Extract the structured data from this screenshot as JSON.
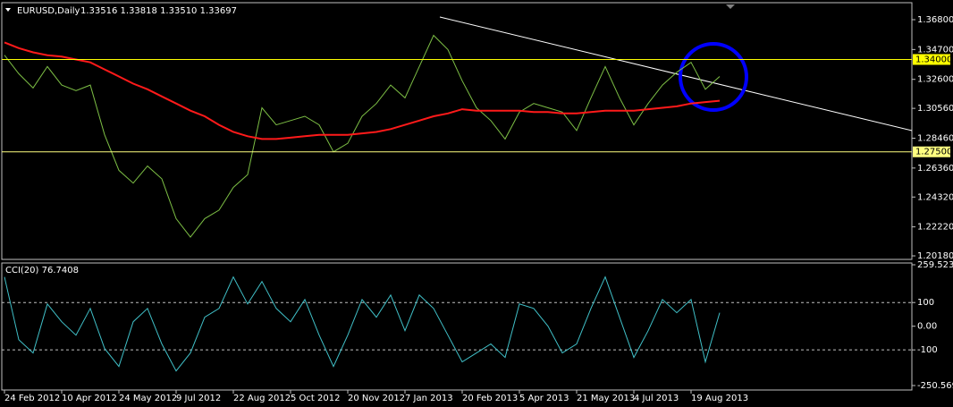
{
  "chart_data": [
    {
      "type": "line",
      "title": "EURUSD,Daily",
      "subtitle": "1.33516 1.33818 1.33510 1.33697",
      "categories": [
        "24 Feb 2012",
        null,
        null,
        null,
        "10 Apr 2012",
        null,
        null,
        null,
        "24 May 2012",
        null,
        null,
        null,
        "9 Jul 2012",
        null,
        null,
        null,
        "22 Aug 2012",
        null,
        null,
        null,
        "5 Oct 2012",
        null,
        null,
        null,
        "20 Nov 2012",
        null,
        null,
        null,
        "7 Jan 2013",
        null,
        null,
        null,
        "20 Feb 2013",
        null,
        null,
        null,
        "5 Apr 2013",
        null,
        null,
        null,
        "21 May 2013",
        null,
        null,
        null,
        "4 Jul 2013",
        null,
        null,
        null,
        "19 Aug 2013",
        null,
        null
      ],
      "series": [
        {
          "color": "#7dbf45",
          "values": [
            1.343,
            1.33,
            1.32,
            1.335,
            1.322,
            1.318,
            1.322,
            1.287,
            1.262,
            1.253,
            1.265,
            1.256,
            1.228,
            1.215,
            1.228,
            1.234,
            1.25,
            1.259,
            1.306,
            1.294,
            1.297,
            1.3,
            1.294,
            1.275,
            1.281,
            1.3,
            1.309,
            1.322,
            1.313,
            1.335,
            1.357,
            1.347,
            1.325,
            1.306,
            1.297,
            1.284,
            1.303,
            1.309,
            1.306,
            1.303,
            1.29,
            1.313,
            1.335,
            1.313,
            1.294,
            1.309,
            1.322,
            1.331,
            1.338,
            1.319,
            1.328
          ]
        },
        {
          "color": "#ff1a1a",
          "values": [
            1.352,
            1.348,
            1.345,
            1.343,
            1.342,
            1.34,
            1.338,
            1.333,
            1.328,
            1.323,
            1.319,
            1.314,
            1.309,
            1.304,
            1.3,
            1.294,
            1.289,
            1.286,
            1.284,
            1.284,
            1.285,
            1.286,
            1.287,
            1.287,
            1.287,
            1.288,
            1.289,
            1.291,
            1.294,
            1.297,
            1.3,
            1.302,
            1.305,
            1.304,
            1.304,
            1.304,
            1.304,
            1.303,
            1.303,
            1.302,
            1.302,
            1.303,
            1.304,
            1.304,
            1.304,
            1.305,
            1.306,
            1.307,
            1.309,
            1.31,
            1.311
          ]
        }
      ],
      "ylim": [
        1.1993,
        1.3787
      ],
      "yticks": [
        {
          "value": 1.368,
          "label": "1.36800"
        },
        {
          "value": 1.347,
          "label": "1.34700"
        },
        {
          "value": 1.326,
          "label": "1.32600"
        },
        {
          "value": 1.3056,
          "label": "1.30560"
        },
        {
          "value": 1.2846,
          "label": "1.28460"
        },
        {
          "value": 1.2636,
          "label": "1.26360"
        },
        {
          "value": 1.2432,
          "label": "1.24320"
        },
        {
          "value": 1.2222,
          "label": "1.22220"
        },
        {
          "value": 1.2018,
          "label": "1.20180"
        }
      ],
      "hlines": [
        {
          "value": 1.34,
          "label": "1.34000",
          "color": "#ffff00"
        },
        {
          "value": 1.275,
          "label": "1.27500",
          "color": "#ffff80"
        }
      ]
    },
    {
      "type": "line",
      "title": "CCI(20) 76.7408",
      "series": [
        {
          "color": "#40c0c8",
          "values": [
            208,
            -57,
            -113,
            94,
            19,
            -38,
            75,
            -94,
            -170,
            19,
            75,
            -75,
            -189,
            -113,
            38,
            75,
            208,
            94,
            189,
            75,
            19,
            113,
            -38,
            -170,
            -38,
            113,
            38,
            132,
            -19,
            132,
            75,
            -38,
            -151,
            -113,
            -75,
            -132,
            94,
            75,
            0,
            -113,
            -75,
            75,
            208,
            38,
            -132,
            -19,
            113,
            57,
            113,
            -151,
            57
          ]
        }
      ],
      "ylim": [
        -250.569,
        259.5237
      ],
      "yticks": [
        259.5237,
        100,
        {
          "value": 0,
          "label": "0.00"
        },
        -100,
        -250.569
      ],
      "levels": [
        100,
        -100
      ]
    }
  ]
}
